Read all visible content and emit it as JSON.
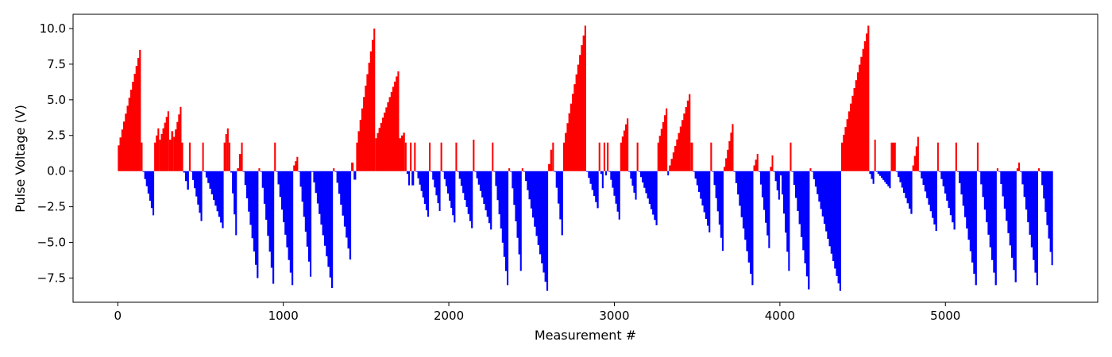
{
  "chart_data": {
    "type": "bar",
    "title": "",
    "xlabel": "Measurement #",
    "ylabel": "Pulse Voltage (V)",
    "xlim": [
      -270,
      5920
    ],
    "ylim": [
      -9.2,
      11.0
    ],
    "x_ticks": [
      0,
      1000,
      2000,
      3000,
      4000,
      5000
    ],
    "x_tick_labels": [
      "0",
      "1000",
      "2000",
      "3000",
      "4000",
      "5000"
    ],
    "y_ticks": [
      10.0,
      7.5,
      5.0,
      2.5,
      0.0,
      -2.5,
      -5.0,
      -7.5
    ],
    "y_tick_labels": [
      "10.0",
      "7.5",
      "5.0",
      "2.5",
      "0.0",
      "−2.5",
      "−5.0",
      "−7.5"
    ],
    "colors": {
      "positive": "#ff0000",
      "negative": "#0000ff"
    },
    "grid": false,
    "legend": "none",
    "segments": [
      {
        "x0": 0,
        "x1": 140,
        "v0": 1.8,
        "v1": 8.5
      },
      {
        "x0": 140,
        "x1": 150,
        "v0": 2.0,
        "v1": 2.0
      },
      {
        "x0": 150,
        "x1": 220,
        "v0": -0.05,
        "v1": -3.1
      },
      {
        "x0": 220,
        "x1": 250,
        "v0": 2.0,
        "v1": 3.0
      },
      {
        "x0": 250,
        "x1": 310,
        "v0": 2.2,
        "v1": 4.2
      },
      {
        "x0": 310,
        "x1": 335,
        "v0": 2.2,
        "v1": 2.8
      },
      {
        "x0": 335,
        "x1": 385,
        "v0": 2.4,
        "v1": 4.5
      },
      {
        "x0": 385,
        "x1": 395,
        "v0": 2.0,
        "v1": 2.0
      },
      {
        "x0": 395,
        "x1": 430,
        "v0": -0.1,
        "v1": -1.3
      },
      {
        "x0": 430,
        "x1": 440,
        "v0": 2.0,
        "v1": 2.0
      },
      {
        "x0": 440,
        "x1": 510,
        "v0": -0.05,
        "v1": -3.5
      },
      {
        "x0": 510,
        "x1": 520,
        "v0": 2.0,
        "v1": 2.0
      },
      {
        "x0": 520,
        "x1": 640,
        "v0": -0.05,
        "v1": -4.0
      },
      {
        "x0": 640,
        "x1": 660,
        "v0": 2.0,
        "v1": 2.6
      },
      {
        "x0": 660,
        "x1": 670,
        "v0": 3.0,
        "v1": 3.0
      },
      {
        "x0": 670,
        "x1": 680,
        "v0": 2.0,
        "v1": 2.0
      },
      {
        "x0": 680,
        "x1": 720,
        "v0": -0.1,
        "v1": -4.5
      },
      {
        "x0": 720,
        "x1": 745,
        "v0": 0.2,
        "v1": 1.2
      },
      {
        "x0": 745,
        "x1": 755,
        "v0": 2.0,
        "v1": 2.0
      },
      {
        "x0": 755,
        "x1": 850,
        "v0": -0.05,
        "v1": -7.5
      },
      {
        "x0": 850,
        "x1": 860,
        "v0": 0.2,
        "v1": 0.2
      },
      {
        "x0": 860,
        "x1": 945,
        "v0": -0.05,
        "v1": -7.9
      },
      {
        "x0": 945,
        "x1": 955,
        "v0": 2.0,
        "v1": 2.0
      },
      {
        "x0": 955,
        "x1": 1060,
        "v0": -0.05,
        "v1": -8.0
      },
      {
        "x0": 1060,
        "x1": 1090,
        "v0": 0.4,
        "v1": 1.0
      },
      {
        "x0": 1090,
        "x1": 1170,
        "v0": -0.05,
        "v1": -7.4
      },
      {
        "x0": 1170,
        "x1": 1300,
        "v0": -0.05,
        "v1": -8.2
      },
      {
        "x0": 1300,
        "x1": 1310,
        "v0": 0.2,
        "v1": 0.2
      },
      {
        "x0": 1310,
        "x1": 1410,
        "v0": -0.05,
        "v1": -6.2
      },
      {
        "x0": 1410,
        "x1": 1425,
        "v0": 0.2,
        "v1": 0.6
      },
      {
        "x0": 1425,
        "x1": 1440,
        "v0": -0.2,
        "v1": -0.6
      },
      {
        "x0": 1440,
        "x1": 1555,
        "v0": 2.0,
        "v1": 10.0
      },
      {
        "x0": 1555,
        "x1": 1700,
        "v0": 2.3,
        "v1": 7.0
      },
      {
        "x0": 1700,
        "x1": 1735,
        "v0": 2.3,
        "v1": 2.7
      },
      {
        "x0": 1735,
        "x1": 1745,
        "v0": 2.0,
        "v1": 2.0
      },
      {
        "x0": 1745,
        "x1": 1765,
        "v0": -0.2,
        "v1": -1.0
      },
      {
        "x0": 1765,
        "x1": 1775,
        "v0": 2.0,
        "v1": 2.0
      },
      {
        "x0": 1775,
        "x1": 1790,
        "v0": -0.2,
        "v1": -1.0
      },
      {
        "x0": 1790,
        "x1": 1800,
        "v0": 2.0,
        "v1": 2.0
      },
      {
        "x0": 1800,
        "x1": 1880,
        "v0": -0.05,
        "v1": -3.2
      },
      {
        "x0": 1880,
        "x1": 1890,
        "v0": 2.0,
        "v1": 2.0
      },
      {
        "x0": 1890,
        "x1": 1950,
        "v0": -0.05,
        "v1": -2.8
      },
      {
        "x0": 1950,
        "x1": 1960,
        "v0": 2.0,
        "v1": 2.0
      },
      {
        "x0": 1960,
        "x1": 2040,
        "v0": -0.05,
        "v1": -3.6
      },
      {
        "x0": 2040,
        "x1": 2050,
        "v0": 2.0,
        "v1": 2.0
      },
      {
        "x0": 2050,
        "x1": 2145,
        "v0": -0.05,
        "v1": -4.0
      },
      {
        "x0": 2145,
        "x1": 2155,
        "v0": 2.2,
        "v1": 2.2
      },
      {
        "x0": 2155,
        "x1": 2260,
        "v0": -0.05,
        "v1": -4.1
      },
      {
        "x0": 2260,
        "x1": 2270,
        "v0": 2.0,
        "v1": 2.0
      },
      {
        "x0": 2270,
        "x1": 2360,
        "v0": -0.05,
        "v1": -8.0
      },
      {
        "x0": 2360,
        "x1": 2370,
        "v0": 0.2,
        "v1": 0.2
      },
      {
        "x0": 2370,
        "x1": 2440,
        "v0": -0.05,
        "v1": -7.0
      },
      {
        "x0": 2440,
        "x1": 2450,
        "v0": 0.2,
        "v1": 0.2
      },
      {
        "x0": 2450,
        "x1": 2600,
        "v0": -0.05,
        "v1": -8.4
      },
      {
        "x0": 2600,
        "x1": 2625,
        "v0": 0.5,
        "v1": 1.5
      },
      {
        "x0": 2625,
        "x1": 2635,
        "v0": 2.0,
        "v1": 2.0
      },
      {
        "x0": 2635,
        "x1": 2690,
        "v0": -0.05,
        "v1": -4.5
      },
      {
        "x0": 2690,
        "x1": 2830,
        "v0": 2.0,
        "v1": 10.2
      },
      {
        "x0": 2830,
        "x1": 2905,
        "v0": -0.05,
        "v1": -2.6
      },
      {
        "x0": 2905,
        "x1": 2915,
        "v0": 2.0,
        "v1": 2.0
      },
      {
        "x0": 2915,
        "x1": 2935,
        "v0": -0.2,
        "v1": -1.2
      },
      {
        "x0": 2935,
        "x1": 2945,
        "v0": 2.0,
        "v1": 2.0
      },
      {
        "x0": 2945,
        "x1": 2955,
        "v0": -0.3,
        "v1": -0.3
      },
      {
        "x0": 2955,
        "x1": 2965,
        "v0": 2.0,
        "v1": 2.0
      },
      {
        "x0": 2965,
        "x1": 3035,
        "v0": -0.05,
        "v1": -3.4
      },
      {
        "x0": 3035,
        "x1": 3085,
        "v0": 2.0,
        "v1": 3.7
      },
      {
        "x0": 3085,
        "x1": 3135,
        "v0": -0.05,
        "v1": -2.0
      },
      {
        "x0": 3135,
        "x1": 3145,
        "v0": 2.0,
        "v1": 2.0
      },
      {
        "x0": 3145,
        "x1": 3260,
        "v0": -0.05,
        "v1": -3.8
      },
      {
        "x0": 3260,
        "x1": 3320,
        "v0": 2.0,
        "v1": 4.4
      },
      {
        "x0": 3320,
        "x1": 3330,
        "v0": -0.3,
        "v1": -0.3
      },
      {
        "x0": 3330,
        "x1": 3460,
        "v0": 0.4,
        "v1": 5.4
      },
      {
        "x0": 3460,
        "x1": 3475,
        "v0": 2.0,
        "v1": 2.0
      },
      {
        "x0": 3475,
        "x1": 3580,
        "v0": -0.05,
        "v1": -4.3
      },
      {
        "x0": 3580,
        "x1": 3590,
        "v0": 2.0,
        "v1": 2.0
      },
      {
        "x0": 3590,
        "x1": 3660,
        "v0": -0.05,
        "v1": -5.6
      },
      {
        "x0": 3660,
        "x1": 3720,
        "v0": 0.3,
        "v1": 3.3
      },
      {
        "x0": 3720,
        "x1": 3840,
        "v0": -0.05,
        "v1": -8.0
      },
      {
        "x0": 3840,
        "x1": 3870,
        "v0": 0.4,
        "v1": 1.2
      },
      {
        "x0": 3870,
        "x1": 3940,
        "v0": -0.05,
        "v1": -5.4
      },
      {
        "x0": 3940,
        "x1": 3960,
        "v0": 0.3,
        "v1": 1.1
      },
      {
        "x0": 3960,
        "x1": 4000,
        "v0": -0.05,
        "v1": -2.0
      },
      {
        "x0": 4000,
        "x1": 4060,
        "v0": -0.3,
        "v1": -7.0
      },
      {
        "x0": 4060,
        "x1": 4070,
        "v0": 2.0,
        "v1": 2.0
      },
      {
        "x0": 4070,
        "x1": 4180,
        "v0": -0.05,
        "v1": -8.3
      },
      {
        "x0": 4180,
        "x1": 4190,
        "v0": 0.2,
        "v1": 0.2
      },
      {
        "x0": 4190,
        "x1": 4370,
        "v0": -0.05,
        "v1": -8.4
      },
      {
        "x0": 4370,
        "x1": 4540,
        "v0": 2.0,
        "v1": 10.2
      },
      {
        "x0": 4540,
        "x1": 4570,
        "v0": -0.2,
        "v1": -0.9
      },
      {
        "x0": 4570,
        "x1": 4580,
        "v0": 2.2,
        "v1": 2.2
      },
      {
        "x0": 4580,
        "x1": 4670,
        "v0": -0.05,
        "v1": -1.2
      },
      {
        "x0": 4670,
        "x1": 4700,
        "v0": 2.0,
        "v1": 2.0
      },
      {
        "x0": 4700,
        "x1": 4800,
        "v0": -0.05,
        "v1": -3.0
      },
      {
        "x0": 4800,
        "x1": 4840,
        "v0": 0.4,
        "v1": 2.4
      },
      {
        "x0": 4840,
        "x1": 4950,
        "v0": -0.05,
        "v1": -4.2
      },
      {
        "x0": 4950,
        "x1": 4960,
        "v0": 2.0,
        "v1": 2.0
      },
      {
        "x0": 4960,
        "x1": 5060,
        "v0": -0.05,
        "v1": -4.1
      },
      {
        "x0": 5060,
        "x1": 5070,
        "v0": 2.0,
        "v1": 2.0
      },
      {
        "x0": 5070,
        "x1": 5190,
        "v0": -0.05,
        "v1": -8.0
      },
      {
        "x0": 5190,
        "x1": 5200,
        "v0": 2.0,
        "v1": 2.0
      },
      {
        "x0": 5200,
        "x1": 5310,
        "v0": -0.05,
        "v1": -8.0
      },
      {
        "x0": 5310,
        "x1": 5320,
        "v0": 0.2,
        "v1": 0.2
      },
      {
        "x0": 5320,
        "x1": 5430,
        "v0": -0.05,
        "v1": -7.8
      },
      {
        "x0": 5430,
        "x1": 5450,
        "v0": 0.2,
        "v1": 0.6
      },
      {
        "x0": 5450,
        "x1": 5560,
        "v0": -0.05,
        "v1": -8.0
      },
      {
        "x0": 5560,
        "x1": 5570,
        "v0": 0.2,
        "v1": 0.2
      },
      {
        "x0": 5570,
        "x1": 5650,
        "v0": -0.05,
        "v1": -6.6
      }
    ]
  }
}
